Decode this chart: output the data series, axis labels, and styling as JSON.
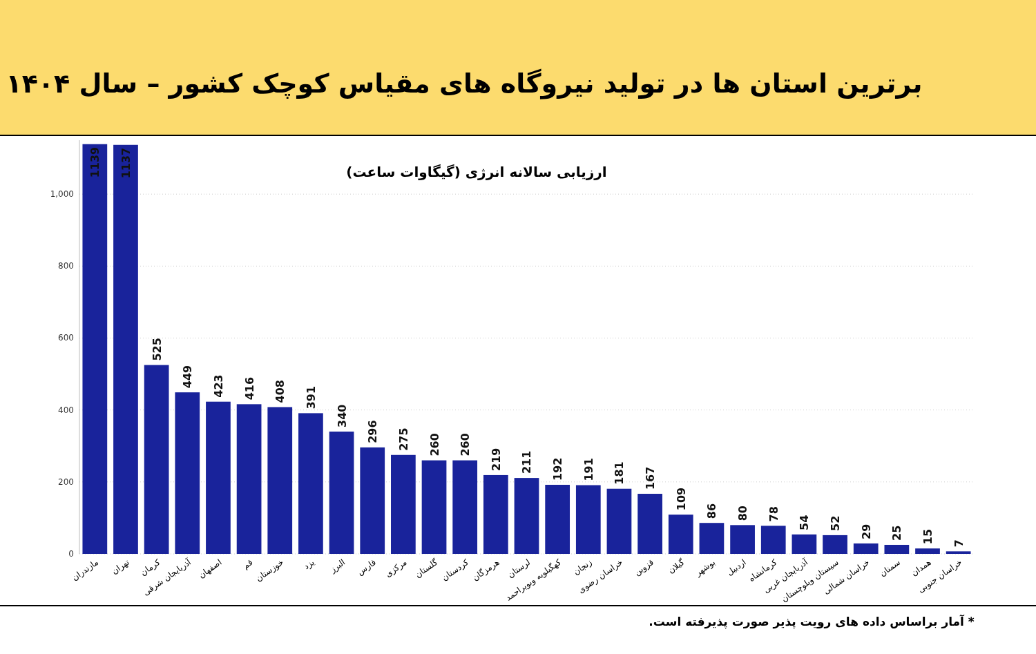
{
  "chart_data": {
    "type": "bar",
    "title": "برترین استان ها در تولید نیروگاه های مقیاس کوچک کشور – سال ۱۴۰۴",
    "subtitle": "ارزیابی سالانه انرژی (گیگاوات ساعت)",
    "annotations": [
      "* آمار براساس داده های رویت پذیر صورت پذیرفته است."
    ],
    "categories": [
      "مازندران",
      "تهران",
      "کرمان",
      "آذربایجان شرقی",
      "اصفهان",
      "قم",
      "خوزستان",
      "یزد",
      "البرز",
      "فارس",
      "مرکزی",
      "گلستان",
      "کردستان",
      "هرمزگان",
      "لرستان",
      "کهگیلویه وبویراحمد",
      "زنجان",
      "خراسان رضوی",
      "قزوین",
      "گیلان",
      "بوشهر",
      "اردبیل",
      "کرمانشاه",
      "آذربایجان غربی",
      "سیستان وبلوچستان",
      "خراسان شمالی",
      "سمنان",
      "همدان",
      "خراسان جنوبی"
    ],
    "values": [
      1139,
      1137,
      525,
      449,
      423,
      416,
      408,
      391,
      340,
      296,
      275,
      260,
      260,
      219,
      211,
      192,
      191,
      181,
      167,
      109,
      86,
      80,
      78,
      54,
      52,
      29,
      25,
      15,
      7
    ],
    "color": "#19239b",
    "ylim": [
      0,
      1150
    ],
    "yticks": [
      0,
      200,
      400,
      600,
      800,
      {
        "value": 1000,
        "label": "1,000"
      }
    ],
    "grid": "y",
    "data_labels": true,
    "legend": false
  }
}
